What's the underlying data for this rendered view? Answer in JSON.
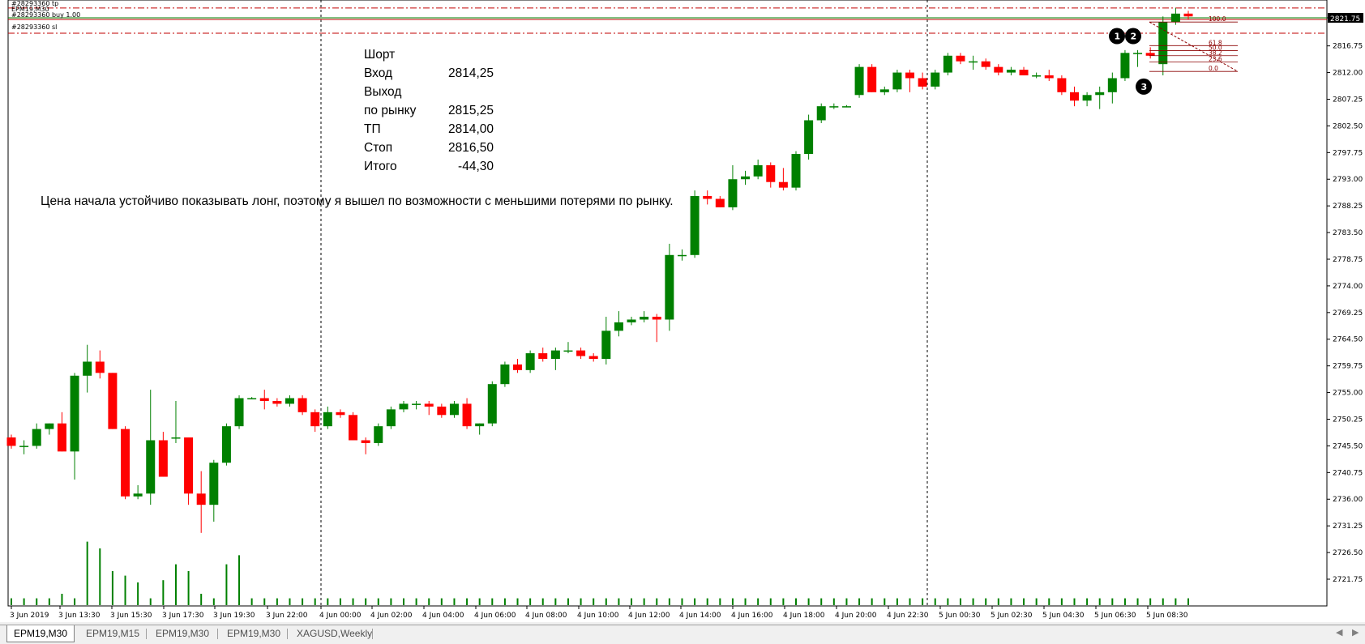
{
  "window": {
    "order_tag_tp": "#28293360 tp",
    "symbol_tf": "EPM19,M30",
    "order_tag_buy": "#28293360 buy 1.00",
    "order_tag_sl": "#28293360 sl"
  },
  "trade_summary": {
    "title": "Шорт",
    "rows": [
      {
        "label": "Вход",
        "value": "2814,25"
      },
      {
        "label": "Выход",
        "value": ""
      },
      {
        "label": "по рынку",
        "value": "2815,25"
      },
      {
        "label": "ТП",
        "value": "2814,00"
      },
      {
        "label": "Стоп",
        "value": "2816,50"
      },
      {
        "label": "Итого",
        "value": "-44,30"
      }
    ]
  },
  "comment": "Цена начала устойчиво показывать лонг, поэтому я вышел по возможности с меньшими потерями по рынку.",
  "markers": [
    "1",
    "2",
    "3"
  ],
  "fib_levels": [
    "100.0",
    "61.8",
    "50.0",
    "38.2",
    "23.6",
    "0.0"
  ],
  "price_label": "2821.75",
  "tabs": [
    "EPM19,M30",
    "EPM19,M15",
    "EPM19,M30",
    "EPM19,M30",
    "XAGUSD,Weekly"
  ],
  "active_tab": 0,
  "colors": {
    "bull": "#008000",
    "bear": "#ff0000",
    "volume": "#008000",
    "level_line": "#c00000",
    "fib": "#8b0000",
    "price_label_bg": "#000000"
  },
  "chart_data": {
    "type": "candlestick",
    "timeframe": "M30",
    "y_ticks": [
      "2821.75",
      "2816.75",
      "2812.00",
      "2807.25",
      "2802.50",
      "2797.75",
      "2793.00",
      "2788.25",
      "2783.50",
      "2778.75",
      "2774.00",
      "2769.25",
      "2764.50",
      "2759.75",
      "2755.00",
      "2750.25",
      "2745.50",
      "2740.75",
      "2736.00",
      "2731.25",
      "2726.50",
      "2721.75"
    ],
    "x_labels": [
      "3 Jun 2019",
      "3 Jun 13:30",
      "3 Jun 15:30",
      "3 Jun 17:30",
      "3 Jun 19:30",
      "3 Jun 22:00",
      "4 Jun 00:00",
      "4 Jun 02:00",
      "4 Jun 04:00",
      "4 Jun 06:00",
      "4 Jun 08:00",
      "4 Jun 10:00",
      "4 Jun 12:00",
      "4 Jun 14:00",
      "4 Jun 16:00",
      "4 Jun 18:00",
      "4 Jun 20:00",
      "4 Jun 22:30",
      "5 Jun 00:30",
      "5 Jun 02:30",
      "5 Jun 04:30",
      "5 Jun 06:30",
      "5 Jun 08:30"
    ],
    "ylim": [
      2719.5,
      2828.5
    ],
    "candles": [
      [
        2747.0,
        2747.5,
        2745.0,
        2745.5
      ],
      [
        2745.5,
        2746.5,
        2744.0,
        2745.5
      ],
      [
        2745.5,
        2749.5,
        2745.0,
        2748.5
      ],
      [
        2748.5,
        2749.5,
        2747.5,
        2749.5
      ],
      [
        2749.5,
        2751.5,
        2744.5,
        2744.5
      ],
      [
        2744.5,
        2758.5,
        2739.5,
        2758.0
      ],
      [
        2758.0,
        2763.5,
        2755.0,
        2760.5
      ],
      [
        2760.5,
        2762.5,
        2757.5,
        2758.5
      ],
      [
        2758.5,
        2758.5,
        2748.5,
        2748.5
      ],
      [
        2748.5,
        2749.0,
        2736.0,
        2736.5
      ],
      [
        2736.5,
        2738.5,
        2736.0,
        2737.0
      ],
      [
        2737.0,
        2755.5,
        2735.0,
        2746.5
      ],
      [
        2746.5,
        2748.0,
        2740.0,
        2740.0
      ],
      [
        2747.0,
        2753.5,
        2746.0,
        2747.0
      ],
      [
        2747.0,
        2747.0,
        2735.0,
        2737.0
      ],
      [
        2737.0,
        2741.0,
        2730.0,
        2735.0
      ],
      [
        2735.0,
        2743.0,
        2732.0,
        2742.5
      ],
      [
        2742.5,
        2749.5,
        2742.0,
        2749.0
      ],
      [
        2749.0,
        2754.5,
        2748.5,
        2754.0
      ],
      [
        2754.0,
        2754.2,
        2753.8,
        2754.0
      ],
      [
        2754.0,
        2755.5,
        2752.0,
        2753.5
      ],
      [
        2753.5,
        2754.0,
        2752.5,
        2753.0
      ],
      [
        2753.0,
        2754.5,
        2752.5,
        2754.0
      ],
      [
        2754.0,
        2754.5,
        2751.0,
        2751.5
      ],
      [
        2751.5,
        2752.0,
        2748.0,
        2749.0
      ],
      [
        2749.0,
        2752.5,
        2748.5,
        2751.5
      ],
      [
        2751.5,
        2752.0,
        2750.5,
        2751.0
      ],
      [
        2751.0,
        2751.5,
        2746.5,
        2746.5
      ],
      [
        2746.5,
        2747.0,
        2744.0,
        2746.0
      ],
      [
        2746.0,
        2749.5,
        2745.5,
        2749.0
      ],
      [
        2749.0,
        2752.5,
        2748.5,
        2752.0
      ],
      [
        2752.0,
        2753.5,
        2751.5,
        2753.0
      ],
      [
        2753.0,
        2753.5,
        2752.0,
        2753.0
      ],
      [
        2753.0,
        2753.5,
        2751.0,
        2752.5
      ],
      [
        2752.5,
        2753.0,
        2750.5,
        2751.0
      ],
      [
        2751.0,
        2753.5,
        2750.5,
        2753.0
      ],
      [
        2753.0,
        2754.0,
        2748.5,
        2749.0
      ],
      [
        2749.0,
        2749.5,
        2747.5,
        2749.5
      ],
      [
        2749.5,
        2757.0,
        2749.0,
        2756.5
      ],
      [
        2756.5,
        2760.5,
        2756.0,
        2760.0
      ],
      [
        2760.0,
        2761.0,
        2758.5,
        2759.0
      ],
      [
        2759.0,
        2762.5,
        2758.5,
        2762.0
      ],
      [
        2762.0,
        2763.0,
        2760.5,
        2761.0
      ],
      [
        2761.0,
        2763.0,
        2759.0,
        2762.5
      ],
      [
        2762.5,
        2764.0,
        2762.0,
        2762.5
      ],
      [
        2762.5,
        2763.0,
        2761.0,
        2761.5
      ],
      [
        2761.5,
        2762.0,
        2760.5,
        2761.0
      ],
      [
        2761.0,
        2768.5,
        2760.0,
        2766.0
      ],
      [
        2766.0,
        2769.5,
        2765.0,
        2767.5
      ],
      [
        2767.5,
        2768.5,
        2767.0,
        2768.0
      ],
      [
        2768.0,
        2769.5,
        2767.5,
        2768.5
      ],
      [
        2768.5,
        2769.0,
        2764.0,
        2768.0
      ],
      [
        2768.0,
        2781.5,
        2766.0,
        2779.5
      ],
      [
        2779.5,
        2780.5,
        2778.5,
        2779.5
      ],
      [
        2779.5,
        2791.0,
        2779.0,
        2790.0
      ],
      [
        2790.0,
        2791.0,
        2788.5,
        2789.5
      ],
      [
        2789.5,
        2790.0,
        2788.0,
        2788.0
      ],
      [
        2788.0,
        2795.5,
        2787.5,
        2793.0
      ],
      [
        2793.0,
        2794.5,
        2792.0,
        2793.5
      ],
      [
        2793.5,
        2796.5,
        2793.0,
        2795.5
      ],
      [
        2795.5,
        2796.0,
        2791.5,
        2792.5
      ],
      [
        2792.5,
        2795.0,
        2791.0,
        2791.5
      ],
      [
        2791.5,
        2798.0,
        2791.0,
        2797.5
      ],
      [
        2797.5,
        2804.5,
        2796.5,
        2803.5
      ],
      [
        2803.5,
        2806.5,
        2803.0,
        2806.0
      ],
      [
        2806.0,
        2806.5,
        2805.5,
        2806.0
      ],
      [
        2806.0,
        2806.2,
        2805.8,
        2806.0
      ],
      [
        2808.0,
        2813.5,
        2807.5,
        2813.0
      ],
      [
        2813.0,
        2813.5,
        2808.5,
        2808.5
      ],
      [
        2808.5,
        2809.5,
        2808.0,
        2809.0
      ],
      [
        2809.0,
        2812.5,
        2808.5,
        2812.0
      ],
      [
        2812.0,
        2812.5,
        2808.5,
        2811.0
      ],
      [
        2811.0,
        2812.0,
        2809.0,
        2809.5
      ],
      [
        2809.5,
        2812.5,
        2809.0,
        2812.0
      ],
      [
        2812.0,
        2815.5,
        2811.5,
        2815.0
      ],
      [
        2815.0,
        2815.5,
        2813.5,
        2814.0
      ],
      [
        2814.0,
        2815.0,
        2812.5,
        2814.0
      ],
      [
        2814.0,
        2814.5,
        2812.5,
        2813.0
      ],
      [
        2813.0,
        2813.5,
        2811.5,
        2812.0
      ],
      [
        2812.0,
        2813.0,
        2811.5,
        2812.5
      ],
      [
        2812.5,
        2813.0,
        2811.5,
        2811.5
      ],
      [
        2811.5,
        2812.0,
        2811.0,
        2811.5
      ],
      [
        2811.5,
        2812.5,
        2810.5,
        2811.0
      ],
      [
        2811.0,
        2811.5,
        2808.0,
        2808.5
      ],
      [
        2808.5,
        2809.5,
        2806.0,
        2807.0
      ],
      [
        2807.0,
        2808.5,
        2806.0,
        2808.0
      ],
      [
        2808.0,
        2809.5,
        2805.5,
        2808.5
      ],
      [
        2808.5,
        2812.0,
        2806.5,
        2811.0
      ],
      [
        2811.0,
        2816.0,
        2810.5,
        2815.5
      ],
      [
        2815.5,
        2816.0,
        2813.0,
        2815.5
      ],
      [
        2815.5,
        2816.5,
        2814.5,
        2815.0
      ],
      [
        2813.5,
        2822.0,
        2811.5,
        2821.0
      ],
      [
        2821.0,
        2823.5,
        2820.5,
        2822.5
      ],
      [
        2822.5,
        2823.0,
        2821.5,
        2822.0
      ]
    ],
    "volume": [
      3,
      3,
      3,
      3,
      5,
      3,
      28,
      25,
      15,
      13,
      10,
      3,
      11,
      18,
      15,
      5,
      3,
      18,
      22,
      3,
      3,
      3,
      3,
      3,
      3,
      3,
      3,
      3,
      3,
      3,
      3,
      3,
      3,
      3,
      3,
      3,
      3,
      3,
      3,
      3,
      3,
      3,
      3,
      3,
      3,
      3,
      3,
      3,
      3,
      3,
      3,
      3,
      3,
      3,
      3,
      3,
      3,
      3,
      3,
      3,
      3,
      3,
      3,
      3,
      3,
      3,
      3,
      3,
      3,
      3,
      3,
      3,
      3,
      3,
      3,
      3,
      3,
      3,
      3,
      3,
      3,
      3,
      3,
      3,
      3,
      3,
      3,
      3,
      3,
      3,
      3,
      3,
      3,
      3
    ],
    "levels": {
      "tp": 2823.5,
      "entry": 2821.75,
      "sl": 2819.0
    }
  }
}
